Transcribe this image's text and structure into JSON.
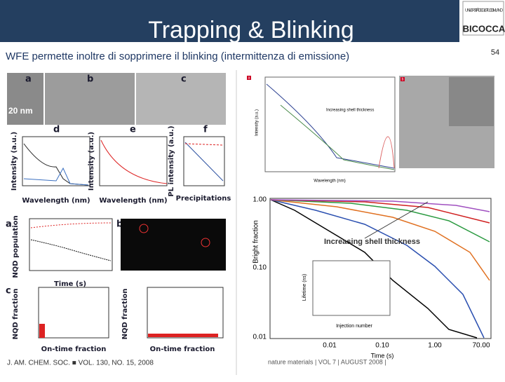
{
  "header": {
    "title": "Trapping & Blinking",
    "subtitle": "WFE permette inoltre di sopprimere il blinking (intermittenza di emissione)",
    "page_number": "54",
    "logo_text": "BICOCCA",
    "logo_caption": "UNIVERSITÀ DEGLI STUDI DI MILANO"
  },
  "left_figure": {
    "panels": [
      "a",
      "b",
      "c",
      "d",
      "e",
      "f"
    ],
    "scale_bar": "20 nm",
    "axis_intensity": "Intensity (a.u.)",
    "axis_wavelength": "Wavelength (nm)",
    "axis_pl": "PL intensity (a.u.)",
    "axis_precipitations": "Precipitations",
    "axis_population": "NQD population",
    "axis_time": "Time (s)",
    "axis_fraction": "NQD fraction",
    "axis_ontime": "On-time fraction",
    "lower_panels": [
      "a",
      "b",
      "c"
    ],
    "citation": "J. AM. CHEM. SOC. ■ VOL. 130, NO. 15, 2008"
  },
  "right_figure": {
    "panels": [
      "a",
      "b"
    ],
    "axis_intensity": "Intensity (a.u.)",
    "axis_wavelength": "Wavelength (nm)",
    "top_annotation": "Increasing shell thickness",
    "axis_bright": "Bright fraction",
    "axis_time": "Time (s)",
    "annotation": "Increasing shell thickness",
    "y_ticks": [
      "1.00",
      "0.10",
      "0.01"
    ],
    "x_ticks": [
      "0.01",
      "0.10",
      "1.00",
      "70.00"
    ],
    "inset_x": "Injection number",
    "inset_y": "Lifetime (ns)",
    "citation": "nature materials | VOL 7 | AUGUST 2008 |"
  }
}
